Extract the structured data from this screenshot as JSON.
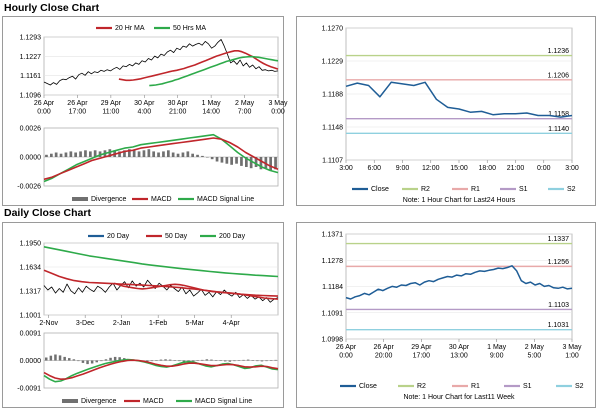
{
  "sections": {
    "hourly_title": "Hourly Close Chart",
    "daily_title": "Daily Close Chart"
  },
  "colors": {
    "price": "#000000",
    "ma_short": "#c0262b",
    "ma_long": "#2eaa4a",
    "macd": "#2eaa4a",
    "signal": "#c0262b",
    "divergence": "#707070",
    "close_line": "#1f5d96",
    "r2": "#b9d28a",
    "r1": "#e8a9a9",
    "s1": "#b49ac6",
    "s2": "#8fd0df"
  },
  "chart_data": [
    {
      "id": "hourly_price",
      "type": "line",
      "title": "Hourly Close Chart",
      "legend": [
        "20 Hr MA",
        "50 Hrs MA"
      ],
      "ylim": [
        1.1096,
        1.1293
      ],
      "y_ticks": [
        "1.1293",
        "1.1227",
        "1.1161",
        "1.1096"
      ],
      "x_ticks": [
        "26 Apr\n0:00",
        "26 Apr\n17:00",
        "29 Apr\n11:00",
        "30 Apr\n4:00",
        "30 Apr\n21:00",
        "1 May\n14:00",
        "2 May\n7:00",
        "3 May\n0:00"
      ],
      "series": [
        {
          "name": "Price",
          "color_key": "price",
          "values": [
            1.114,
            1.1135,
            1.113,
            1.1138,
            1.1132,
            1.1145,
            1.115,
            1.1148,
            1.1155,
            1.116,
            1.115,
            1.1165,
            1.117,
            1.1163,
            1.1175,
            1.1168,
            1.1175,
            1.1172,
            1.118,
            1.1176,
            1.1182,
            1.1178,
            1.1185,
            1.119,
            1.1183,
            1.1195,
            1.1192,
            1.12,
            1.1195,
            1.1205,
            1.12,
            1.1212,
            1.1208,
            1.122,
            1.1215,
            1.1228,
            1.1222,
            1.1235,
            1.123,
            1.1242,
            1.1248,
            1.124,
            1.1255,
            1.125,
            1.1262,
            1.1258,
            1.127,
            1.1262,
            1.1268,
            1.1272,
            1.1265,
            1.1278,
            1.127,
            1.1255,
            1.1262,
            1.1275,
            1.1285,
            1.1262,
            1.1235,
            1.1205,
            1.1212,
            1.12,
            1.1215,
            1.1195,
            1.1205,
            1.119,
            1.1198,
            1.1185,
            1.1192,
            1.118,
            1.1182,
            1.1178,
            1.118,
            1.1176,
            1.1178
          ]
        },
        {
          "name": "20 Hr MA",
          "color_key": "ma_short",
          "values": [
            1.115,
            1.1148,
            1.1146,
            1.1146,
            1.1147,
            1.1149,
            1.1151,
            1.1154,
            1.1157,
            1.116,
            1.1163,
            1.1166,
            1.1169,
            1.1172,
            1.1175,
            1.1178,
            1.118,
            1.1183,
            1.1186,
            1.119,
            1.1194,
            1.1198,
            1.1203,
            1.1208,
            1.1213,
            1.1218,
            1.1223,
            1.1228,
            1.1232,
            1.1236,
            1.124,
            1.1243,
            1.1246,
            1.1246,
            1.1243,
            1.1238,
            1.1232,
            1.1226,
            1.1218,
            1.121,
            1.1203,
            1.1197,
            1.1192,
            1.1188,
            1.1184
          ]
        },
        {
          "name": "50 Hrs MA",
          "color_key": "ma_long",
          "values": [
            1.1128,
            1.1129,
            1.113,
            1.1132,
            1.1134,
            1.1137,
            1.114,
            1.1143,
            1.1147,
            1.115,
            1.1154,
            1.1158,
            1.1162,
            1.1166,
            1.117,
            1.1174,
            1.1178,
            1.1182,
            1.1186,
            1.119,
            1.1194,
            1.1198,
            1.1202,
            1.1206,
            1.121,
            1.1213,
            1.1216,
            1.1219,
            1.1222,
            1.1224,
            1.1225,
            1.1226,
            1.1226,
            1.1225,
            1.1224,
            1.1222,
            1.122,
            1.1218,
            1.1216,
            1.1214,
            1.1212
          ]
        }
      ]
    },
    {
      "id": "hourly_macd",
      "type": "line",
      "legend": [
        "Divergence",
        "MACD",
        "MACD Signal Line"
      ],
      "ylim": [
        -0.0026,
        0.0026
      ],
      "y_ticks": [
        "0.0026",
        "0.0000",
        "-0.0026"
      ],
      "divergence": [
        0.0002,
        0.0003,
        0.0004,
        0.0003,
        0.0004,
        0.0005,
        0.0004,
        0.0005,
        0.0006,
        0.0005,
        0.0006,
        0.0005,
        0.0006,
        0.0007,
        0.0006,
        0.0005,
        0.0006,
        0.0007,
        0.0006,
        0.0005,
        0.0006,
        0.0007,
        0.0005,
        0.0004,
        0.0005,
        0.0006,
        0.0004,
        0.0003,
        0.0004,
        0.0005,
        0.0003,
        0.0002,
        0.0001,
        0.0,
        -0.0002,
        -0.0004,
        -0.0005,
        -0.0006,
        -0.0007,
        -0.0006,
        -0.0008,
        -0.0009,
        -0.001,
        -0.0009,
        -0.0011,
        -0.001,
        -0.0012,
        -0.0011
      ],
      "series": [
        {
          "name": "MACD",
          "color_key": "macd",
          "values": [
            -0.0022,
            -0.0019,
            -0.0015,
            -0.0011,
            -0.0007,
            -0.0004,
            -0.0001,
            0.0002,
            0.0004,
            0.0006,
            0.0008,
            0.0009,
            0.0011,
            0.0012,
            0.0013,
            0.0014,
            0.0015,
            0.0016,
            0.0017,
            0.0018,
            0.0019,
            0.002,
            0.0016,
            0.001,
            0.0004,
            -0.0001,
            -0.0005,
            -0.0009,
            -0.0012,
            -0.0014
          ]
        },
        {
          "name": "MACD Signal Line",
          "color_key": "signal",
          "values": [
            -0.002,
            -0.0018,
            -0.0015,
            -0.0012,
            -0.0009,
            -0.0006,
            -0.0003,
            -0.0001,
            0.0001,
            0.0003,
            0.0005,
            0.0006,
            0.0008,
            0.0009,
            0.001,
            0.0011,
            0.0012,
            0.0013,
            0.0014,
            0.0015,
            0.0016,
            0.0017,
            0.0016,
            0.0013,
            0.0009,
            0.0004,
            0.0,
            -0.0004,
            -0.0008,
            -0.0011
          ]
        }
      ]
    },
    {
      "id": "hourly_24h",
      "type": "line",
      "ylim": [
        1.1107,
        1.127
      ],
      "y_ticks": [
        "1.1270",
        "1.1229",
        "1.1188",
        "1.1148",
        "1.1107"
      ],
      "x_ticks": [
        "3:00",
        "6:00",
        "9:00",
        "12:00",
        "15:00",
        "18:00",
        "21:00",
        "0:00",
        "3:00"
      ],
      "close": [
        1.1198,
        1.1202,
        1.1199,
        1.1185,
        1.1203,
        1.1201,
        1.1199,
        1.1203,
        1.1182,
        1.1172,
        1.117,
        1.1166,
        1.1167,
        1.1163,
        1.1164,
        1.1164,
        1.1165,
        1.1162,
        1.1162,
        1.116,
        1.1162
      ],
      "levels": [
        {
          "name": "R2",
          "value": 1.1236,
          "label": "1.1236",
          "color_key": "r2"
        },
        {
          "name": "R1",
          "value": 1.1206,
          "label": "1.1206",
          "color_key": "r1"
        },
        {
          "name": "S1",
          "value": 1.1158,
          "label": "1.1158",
          "color_key": "s1"
        },
        {
          "name": "S2",
          "value": 1.114,
          "label": "1.1140",
          "color_key": "s2"
        }
      ],
      "legend": [
        "Close",
        "R2",
        "R1",
        "S1",
        "S2"
      ],
      "note": "Note: 1 Hour Chart for Last24 Hours"
    },
    {
      "id": "daily_price",
      "type": "line",
      "title": "Daily Close Chart",
      "legend": [
        "20 Day",
        "50 Day",
        "200 Day"
      ],
      "ylim": [
        1.1001,
        1.195
      ],
      "y_ticks": [
        "1.1950",
        "1.1634",
        "1.1317",
        "1.1001"
      ],
      "x_ticks": [
        "2-Nov",
        "3-Dec",
        "2-Jan",
        "1-Feb",
        "5-Mar",
        "4-Apr"
      ],
      "series": [
        {
          "name": "Price",
          "color_key": "price",
          "values": [
            1.139,
            1.133,
            1.137,
            1.129,
            1.135,
            1.13,
            1.141,
            1.132,
            1.128,
            1.136,
            1.13,
            1.138,
            1.134,
            1.131,
            1.138,
            1.135,
            1.13,
            1.137,
            1.142,
            1.133,
            1.139,
            1.144,
            1.136,
            1.145,
            1.138,
            1.142,
            1.137,
            1.146,
            1.14,
            1.135,
            1.142,
            1.138,
            1.133,
            1.139,
            1.135,
            1.131,
            1.137,
            1.128,
            1.133,
            1.125,
            1.129,
            1.134,
            1.126,
            1.13,
            1.124,
            1.131,
            1.127,
            1.133,
            1.128,
            1.125,
            1.13,
            1.123,
            1.127,
            1.122,
            1.126,
            1.121,
            1.124,
            1.119,
            1.123,
            1.117,
            1.121,
            1.123
          ]
        },
        {
          "name": "20 Day",
          "color_key": "ma_short",
          "values": [
            1.142,
            1.14,
            1.138,
            1.137,
            1.136,
            1.135,
            1.1345,
            1.135,
            1.136,
            1.137,
            1.138,
            1.139,
            1.14,
            1.1405,
            1.14,
            1.139,
            1.1375,
            1.136,
            1.1345,
            1.133,
            1.132,
            1.131,
            1.1305,
            1.13,
            1.1295,
            1.129,
            1.1285,
            1.1275,
            1.1265,
            1.1255,
            1.1245,
            1.1235,
            1.1225,
            1.122,
            1.1215,
            1.121
          ]
        },
        {
          "name": "50 Day",
          "color_key": "signal",
          "values": [
            1.159,
            1.155,
            1.151,
            1.148,
            1.1455,
            1.144,
            1.143,
            1.1425,
            1.142,
            1.1415,
            1.141,
            1.1405,
            1.14,
            1.1395,
            1.139,
            1.1385,
            1.1378,
            1.137,
            1.1362,
            1.1352,
            1.1342,
            1.133,
            1.1318,
            1.1306,
            1.1295,
            1.1285,
            1.1275,
            1.1268,
            1.1262,
            1.1258,
            1.1254,
            1.125
          ]
        },
        {
          "name": "200 Day",
          "color_key": "ma_long",
          "values": [
            1.19,
            1.188,
            1.186,
            1.184,
            1.182,
            1.18,
            1.178,
            1.1765,
            1.175,
            1.1735,
            1.172,
            1.1705,
            1.169,
            1.1675,
            1.1662,
            1.165,
            1.1638,
            1.1626,
            1.1615,
            1.1605,
            1.1595,
            1.1585,
            1.1575,
            1.1565,
            1.1556,
            1.1548,
            1.154,
            1.1533,
            1.1526,
            1.152,
            1.1514,
            1.1508
          ]
        }
      ]
    },
    {
      "id": "daily_macd",
      "type": "line",
      "legend": [
        "Divergence",
        "MACD",
        "MACD Signal Line"
      ],
      "ylim": [
        -0.0091,
        0.0091
      ],
      "y_ticks": [
        "0.0091",
        "0.0000",
        "-0.0091"
      ],
      "divergence": [
        0.001,
        0.0016,
        0.002,
        0.0017,
        0.0012,
        0.0008,
        0.0004,
        -0.0002,
        -0.0008,
        -0.0012,
        -0.001,
        -0.0006,
        -0.0002,
        0.0004,
        0.0009,
        0.0012,
        0.0011,
        0.0008,
        0.0004,
        0.0001,
        -0.0003,
        -0.0005,
        -0.0004,
        -0.0002,
        0.0001,
        0.0003,
        0.0004,
        0.0003,
        0.0001,
        -0.0002,
        -0.0004,
        -0.0005,
        -0.0003,
        -0.0001,
        0.0002,
        0.0004,
        0.0003,
        0.0001,
        -0.0001,
        -0.0003,
        -0.0004,
        -0.0002,
        0.0,
        0.0002,
        0.0003,
        0.0001,
        -0.0002,
        -0.0003,
        -0.0002,
        0.0001,
        0.0002
      ],
      "series": [
        {
          "name": "MACD",
          "color_key": "macd",
          "values": [
            -0.005,
            -0.0062,
            -0.007,
            -0.0068,
            -0.006,
            -0.005,
            -0.0042,
            -0.0035,
            -0.0028,
            -0.0022,
            -0.0016,
            -0.001,
            -0.0006,
            -0.0002,
            0.0001,
            0.0003,
            0.0002,
            -0.0001,
            -0.0005,
            -0.001,
            -0.0016,
            -0.002,
            -0.0022,
            -0.0018,
            -0.0012,
            -0.0006,
            -0.0004,
            -0.0006,
            -0.0012,
            -0.0018,
            -0.0021,
            -0.0017,
            -0.0012,
            -0.001,
            -0.0014,
            -0.002,
            -0.0026,
            -0.0024,
            -0.0018,
            -0.0016,
            -0.0022,
            -0.0028,
            -0.003
          ]
        },
        {
          "name": "MACD Signal Line",
          "color_key": "signal",
          "values": [
            -0.004,
            -0.005,
            -0.0058,
            -0.0062,
            -0.0061,
            -0.0057,
            -0.0051,
            -0.0045,
            -0.0038,
            -0.0031,
            -0.0024,
            -0.0018,
            -0.0012,
            -0.0007,
            -0.0003,
            0.0,
            0.0001,
            0.0,
            -0.0003,
            -0.0007,
            -0.0012,
            -0.0016,
            -0.0019,
            -0.0019,
            -0.0016,
            -0.0012,
            -0.0009,
            -0.0009,
            -0.0011,
            -0.0014,
            -0.0017,
            -0.0017,
            -0.0015,
            -0.0013,
            -0.0014,
            -0.0017,
            -0.0021,
            -0.0022,
            -0.0021,
            -0.0019,
            -0.002,
            -0.0024,
            -0.0027
          ]
        }
      ]
    },
    {
      "id": "daily_week",
      "type": "line",
      "ylim": [
        1.0998,
        1.1371
      ],
      "y_ticks": [
        "1.1371",
        "1.1278",
        "1.1184",
        "1.1091",
        "1.0998"
      ],
      "x_ticks": [
        "26 Apr\n0:00",
        "26 Apr\n20:00",
        "29 Apr\n17:00",
        "30 Apr\n13:00",
        "1 May\n9:00",
        "2 May\n5:00",
        "3 May\n1:00"
      ],
      "close": [
        1.1145,
        1.114,
        1.1148,
        1.1152,
        1.116,
        1.1155,
        1.1165,
        1.1175,
        1.117,
        1.1178,
        1.1185,
        1.1182,
        1.119,
        1.1188,
        1.1195,
        1.1198,
        1.119,
        1.12,
        1.1205,
        1.1202,
        1.121,
        1.1215,
        1.122,
        1.1218,
        1.1225,
        1.1222,
        1.123,
        1.1228,
        1.1235,
        1.124,
        1.1238,
        1.1242,
        1.1245,
        1.125,
        1.1248,
        1.1252,
        1.1258,
        1.124,
        1.1205,
        1.1195,
        1.12,
        1.119,
        1.1195,
        1.1185,
        1.1188,
        1.118,
        1.1178,
        1.1182,
        1.1176,
        1.1178
      ],
      "levels": [
        {
          "name": "R2",
          "value": 1.1337,
          "label": "1.1337",
          "color_key": "r2"
        },
        {
          "name": "R1",
          "value": 1.1256,
          "label": "1.1256",
          "color_key": "r1"
        },
        {
          "name": "S1",
          "value": 1.1103,
          "label": "1.1103",
          "color_key": "s1"
        },
        {
          "name": "S2",
          "value": 1.1031,
          "label": "1.1031",
          "color_key": "s2"
        }
      ],
      "legend": [
        "Close",
        "R2",
        "R1",
        "S1",
        "S2"
      ],
      "note": "Note: 1 Hour Chart for Last11 Week"
    }
  ]
}
